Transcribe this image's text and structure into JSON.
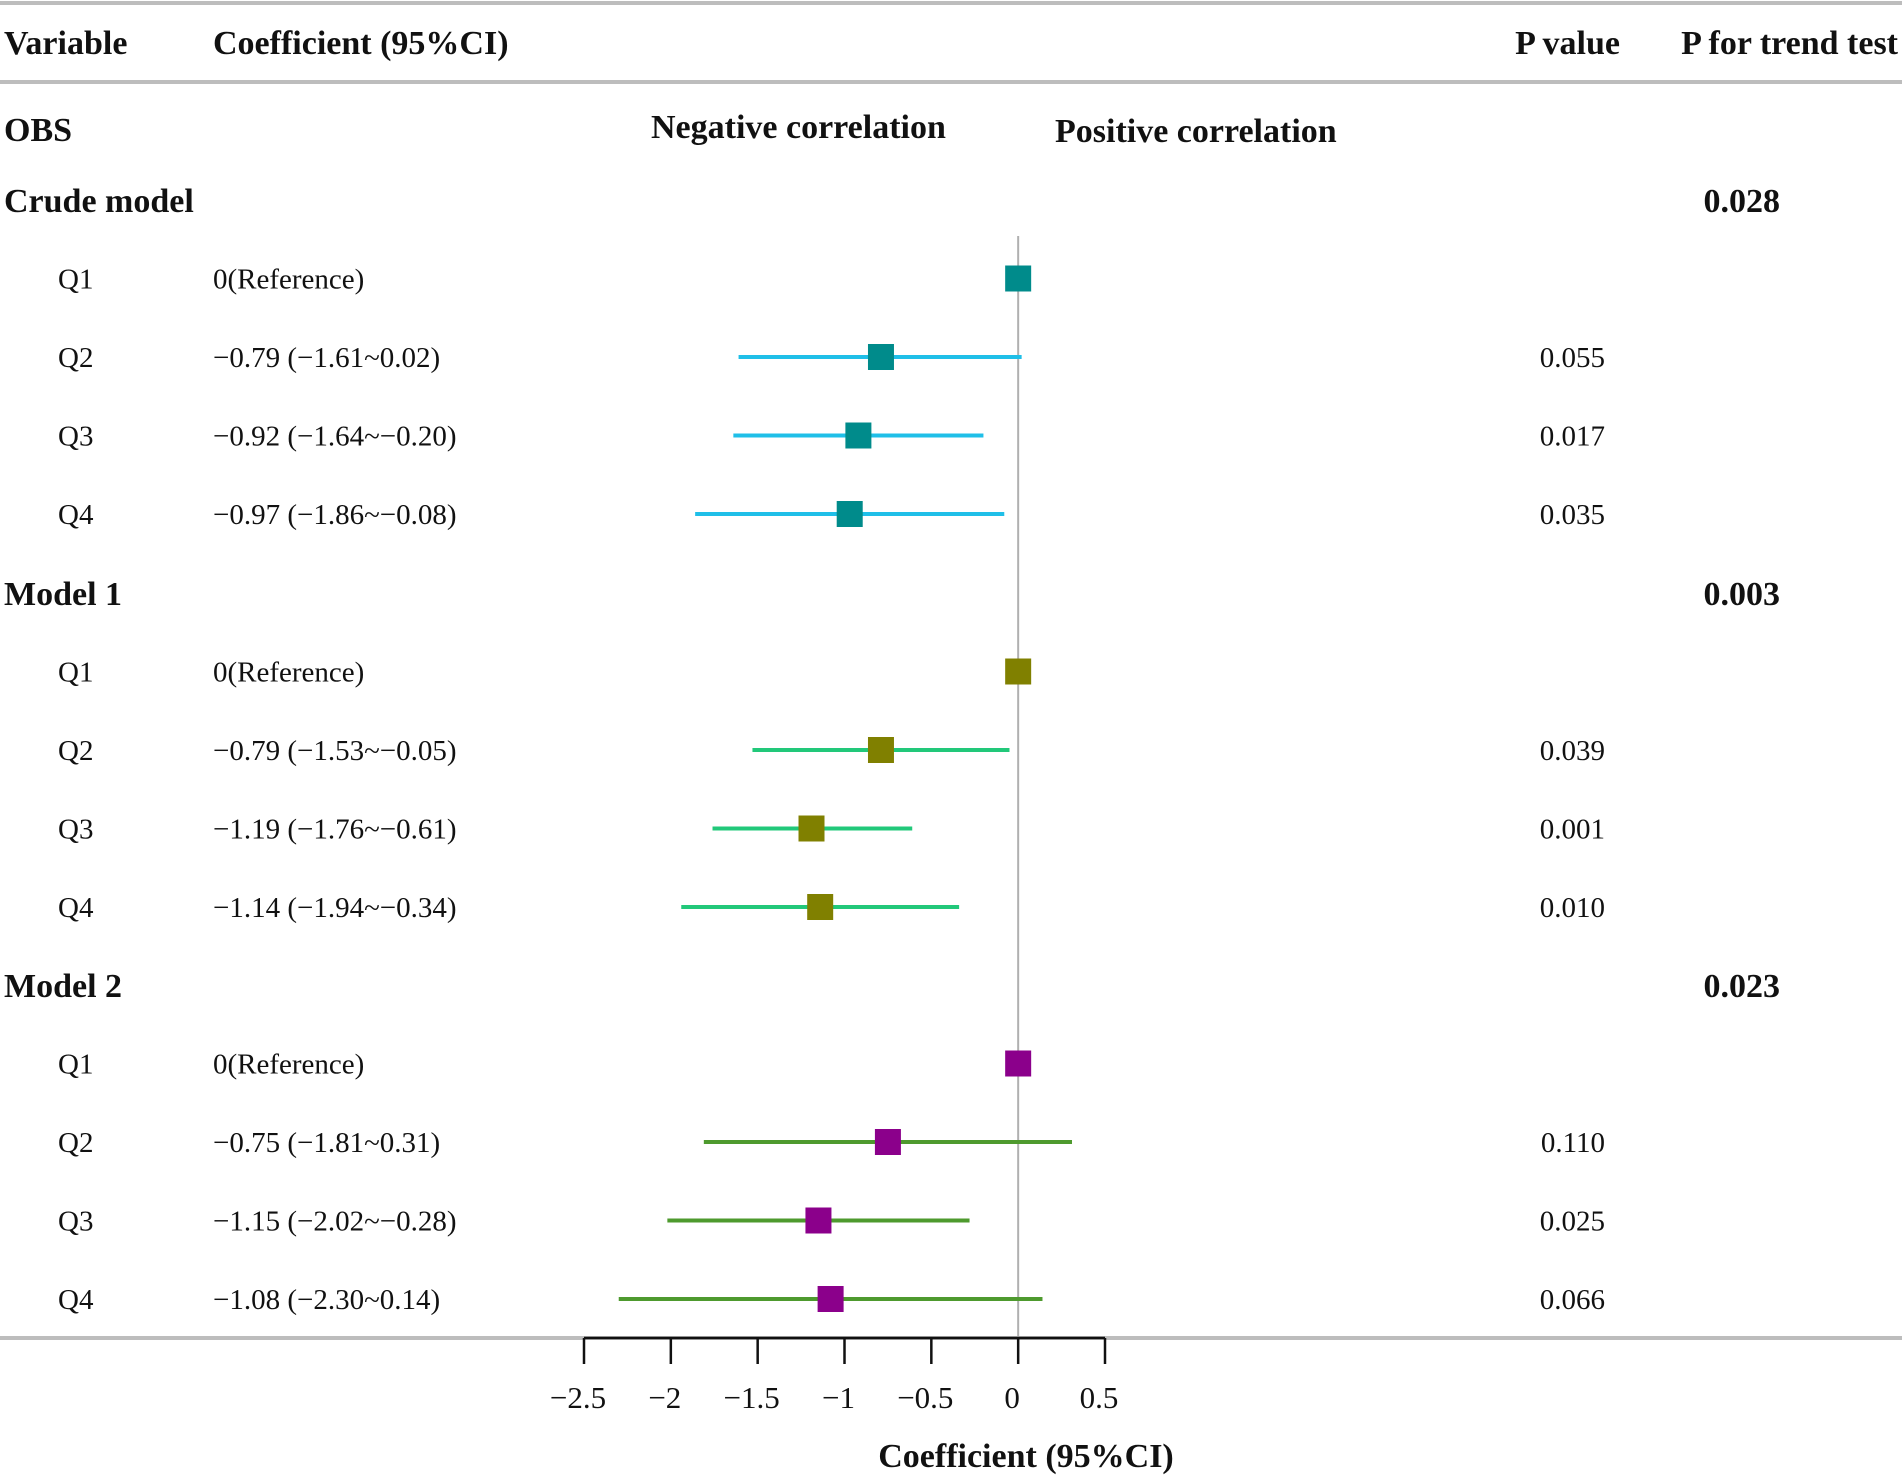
{
  "header": {
    "variable": "Variable",
    "coefficient": "Coefficient (95%CI)",
    "p_value": "P value",
    "p_trend": "P for trend test"
  },
  "section_label": "OBS",
  "direction": {
    "negative": "Negative correlation",
    "positive": "Positive correlation"
  },
  "colors": {
    "rule": "#bdbdbd",
    "zero_line": "#b0b0b0",
    "axis": "#111111"
  },
  "chart_data": {
    "type": "forest",
    "xlabel": "Coefficient (95%CI)",
    "xlim": [
      -2.5,
      0.5
    ],
    "ticks": [
      -2.5,
      -2,
      -1.5,
      -1,
      -0.5,
      0,
      0.5
    ],
    "tick_labels": [
      "−2.5",
      "−2",
      "−1.5",
      "−1",
      "−0.5",
      "0",
      "0.5"
    ],
    "reference_line": 0,
    "groups": [
      {
        "name": "Crude model",
        "p_trend": "0.028",
        "marker_color": "#008b8b",
        "ci_color": "#1fbfe8",
        "rows": [
          {
            "label": "Q1",
            "text": "0(Reference)",
            "est": 0,
            "lo": null,
            "hi": null,
            "p": ""
          },
          {
            "label": "Q2",
            "text": "−0.79 (−1.61~0.02)",
            "est": -0.79,
            "lo": -1.61,
            "hi": 0.02,
            "p": "0.055"
          },
          {
            "label": "Q3",
            "text": "−0.92 (−1.64~−0.20)",
            "est": -0.92,
            "lo": -1.64,
            "hi": -0.2,
            "p": "0.017"
          },
          {
            "label": "Q4",
            "text": "−0.97 (−1.86~−0.08)",
            "est": -0.97,
            "lo": -1.86,
            "hi": -0.08,
            "p": "0.035"
          }
        ]
      },
      {
        "name": "Model 1",
        "p_trend": "0.003",
        "marker_color": "#808000",
        "ci_color": "#22c87a",
        "rows": [
          {
            "label": "Q1",
            "text": "0(Reference)",
            "est": 0,
            "lo": null,
            "hi": null,
            "p": ""
          },
          {
            "label": "Q2",
            "text": "−0.79 (−1.53~−0.05)",
            "est": -0.79,
            "lo": -1.53,
            "hi": -0.05,
            "p": "0.039"
          },
          {
            "label": "Q3",
            "text": "−1.19 (−1.76~−0.61)",
            "est": -1.19,
            "lo": -1.76,
            "hi": -0.61,
            "p": "0.001"
          },
          {
            "label": "Q4",
            "text": "−1.14 (−1.94~−0.34)",
            "est": -1.14,
            "lo": -1.94,
            "hi": -0.34,
            "p": "0.010"
          }
        ]
      },
      {
        "name": "Model 2",
        "p_trend": "0.023",
        "marker_color": "#8b008b",
        "ci_color": "#4e9a2e",
        "rows": [
          {
            "label": "Q1",
            "text": "0(Reference)",
            "est": 0,
            "lo": null,
            "hi": null,
            "p": ""
          },
          {
            "label": "Q2",
            "text": "−0.75 (−1.81~0.31)",
            "est": -0.75,
            "lo": -1.81,
            "hi": 0.31,
            "p": "0.110"
          },
          {
            "label": "Q3",
            "text": "−1.15 (−2.02~−0.28)",
            "est": -1.15,
            "lo": -2.02,
            "hi": -0.28,
            "p": "0.025"
          },
          {
            "label": "Q4",
            "text": "−1.08 (−2.30~0.14)",
            "est": -1.08,
            "lo": -2.3,
            "hi": 0.14,
            "p": "0.066"
          }
        ]
      }
    ]
  }
}
